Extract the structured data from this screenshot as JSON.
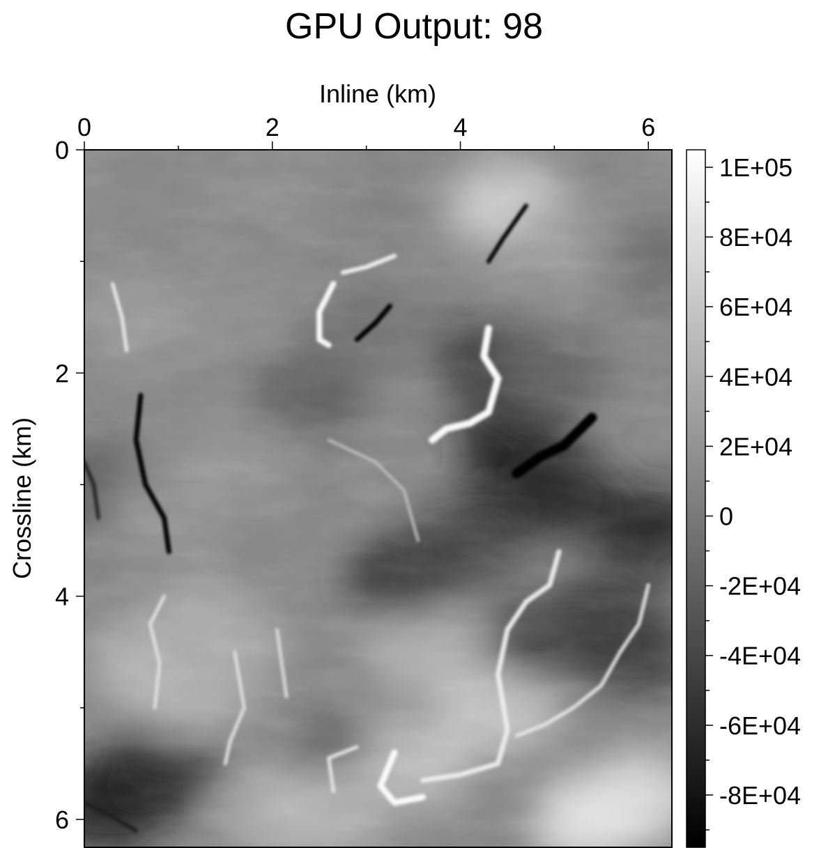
{
  "chart_data": {
    "type": "heatmap",
    "title": "GPU Output: 98",
    "xlabel": "Inline (km)",
    "ylabel": "Crossline (km)",
    "x_axis_position": "top",
    "y_axis_inverted": true,
    "xlim": [
      0,
      6.25
    ],
    "ylim": [
      0,
      6.25
    ],
    "x_ticks": [
      0,
      2,
      4,
      6
    ],
    "x_tick_labels": [
      "0",
      "2",
      "4",
      "6"
    ],
    "y_ticks": [
      0,
      2,
      4,
      6
    ],
    "y_tick_labels": [
      "0",
      "2",
      "4",
      "6"
    ],
    "colormap": "grayscale",
    "colorbar": {
      "range": [
        -95000,
        105000
      ],
      "ticks": [
        100000,
        80000,
        60000,
        40000,
        20000,
        0,
        -20000,
        -40000,
        -60000,
        -80000
      ],
      "tick_labels": [
        "1E+05",
        "8E+04",
        "6E+04",
        "4E+04",
        "2E+04",
        "0",
        "-2E+04",
        "-4E+04",
        "-6E+04",
        "-8E+04"
      ],
      "low_color": "#000000",
      "high_color": "#ffffff"
    },
    "features": [
      {
        "x": 0.5,
        "y": 5.7,
        "v": -80000
      },
      {
        "x": 0.25,
        "y": 5.9,
        "v": -70000
      },
      {
        "x": 0.9,
        "y": 5.5,
        "v": -60000
      },
      {
        "x": 0.7,
        "y": 4.6,
        "v": 50000
      },
      {
        "x": 1.1,
        "y": 4.9,
        "v": 45000
      },
      {
        "x": 1.5,
        "y": 4.4,
        "v": 40000
      },
      {
        "x": 1.2,
        "y": 4.2,
        "v": 35000
      },
      {
        "x": 2.0,
        "y": 5.9,
        "v": 40000
      },
      {
        "x": 2.8,
        "y": 5.6,
        "v": -85000
      },
      {
        "x": 2.6,
        "y": 5.9,
        "v": 55000
      },
      {
        "x": 3.5,
        "y": 5.5,
        "v": 60000
      },
      {
        "x": 4.4,
        "y": 5.0,
        "v": 65000
      },
      {
        "x": 5.4,
        "y": 6.0,
        "v": 90000
      },
      {
        "x": 5.9,
        "y": 5.8,
        "v": 80000
      },
      {
        "x": 3.6,
        "y": 4.5,
        "v": 45000
      },
      {
        "x": 4.5,
        "y": 0.5,
        "v": 70000
      },
      {
        "x": 5.1,
        "y": 0.9,
        "v": 25000
      },
      {
        "x": 4.7,
        "y": 3.0,
        "v": -85000
      },
      {
        "x": 4.6,
        "y": 2.6,
        "v": -70000
      },
      {
        "x": 5.1,
        "y": 3.1,
        "v": -60000
      },
      {
        "x": 4.3,
        "y": 1.9,
        "v": -50000
      },
      {
        "x": 5.0,
        "y": 2.0,
        "v": -20000
      },
      {
        "x": 6.0,
        "y": 3.4,
        "v": -70000
      },
      {
        "x": 5.5,
        "y": 4.2,
        "v": -55000
      },
      {
        "x": 5.9,
        "y": 4.5,
        "v": -50000
      },
      {
        "x": 4.9,
        "y": 4.4,
        "v": -45000
      },
      {
        "x": 3.4,
        "y": 3.8,
        "v": -55000
      },
      {
        "x": 4.1,
        "y": 3.5,
        "v": -45000
      },
      {
        "x": 2.4,
        "y": 2.2,
        "v": -25000
      },
      {
        "x": 1.7,
        "y": 2.8,
        "v": 20000
      },
      {
        "x": 1.5,
        "y": 1.5,
        "v": 15000
      },
      {
        "x": 0.5,
        "y": 1.5,
        "v": 25000
      },
      {
        "x": 0.2,
        "y": 3.0,
        "v": -25000
      },
      {
        "x": 0.9,
        "y": 3.2,
        "v": 20000
      },
      {
        "x": 2.0,
        "y": 0.4,
        "v": 15000
      },
      {
        "x": 3.2,
        "y": 0.6,
        "v": 5000
      },
      {
        "x": 3.0,
        "y": 1.6,
        "v": -10000
      },
      {
        "x": 2.7,
        "y": 3.0,
        "v": 10000
      },
      {
        "x": 6.1,
        "y": 1.0,
        "v": -10000
      }
    ],
    "ridges": [
      {
        "v": -95000,
        "w": 7,
        "pts": [
          [
            0.6,
            2.2
          ],
          [
            0.55,
            2.6
          ],
          [
            0.65,
            3.0
          ],
          [
            0.85,
            3.3
          ],
          [
            0.9,
            3.6
          ]
        ]
      },
      {
        "v": -70000,
        "w": 5,
        "pts": [
          [
            0.0,
            2.8
          ],
          [
            0.1,
            3.0
          ],
          [
            0.15,
            3.3
          ]
        ]
      },
      {
        "v": 90000,
        "w": 5,
        "pts": [
          [
            0.3,
            1.2
          ],
          [
            0.4,
            1.5
          ],
          [
            0.45,
            1.8
          ]
        ]
      },
      {
        "v": 100000,
        "w": 8,
        "pts": [
          [
            2.65,
            1.2
          ],
          [
            2.5,
            1.45
          ],
          [
            2.5,
            1.7
          ],
          [
            2.6,
            1.75
          ]
        ]
      },
      {
        "v": 95000,
        "w": 6,
        "pts": [
          [
            2.75,
            1.1
          ],
          [
            3.0,
            1.05
          ],
          [
            3.3,
            0.95
          ]
        ]
      },
      {
        "v": -95000,
        "w": 7,
        "pts": [
          [
            2.9,
            1.7
          ],
          [
            3.1,
            1.55
          ],
          [
            3.25,
            1.4
          ]
        ]
      },
      {
        "v": 100000,
        "w": 10,
        "pts": [
          [
            4.3,
            1.6
          ],
          [
            4.25,
            1.85
          ],
          [
            4.4,
            2.05
          ],
          [
            4.3,
            2.35
          ],
          [
            4.1,
            2.45
          ],
          [
            3.85,
            2.5
          ],
          [
            3.7,
            2.6
          ]
        ]
      },
      {
        "v": -90000,
        "w": 6,
        "pts": [
          [
            4.3,
            1.0
          ],
          [
            4.45,
            0.8
          ],
          [
            4.7,
            0.5
          ]
        ]
      },
      {
        "v": -95000,
        "w": 14,
        "pts": [
          [
            4.6,
            2.9
          ],
          [
            4.85,
            2.75
          ],
          [
            5.1,
            2.65
          ],
          [
            5.4,
            2.4
          ]
        ]
      },
      {
        "v": 90000,
        "w": 7,
        "pts": [
          [
            5.05,
            3.6
          ],
          [
            4.95,
            3.9
          ],
          [
            4.7,
            4.05
          ],
          [
            4.5,
            4.3
          ],
          [
            4.4,
            4.7
          ],
          [
            4.5,
            5.2
          ],
          [
            4.4,
            5.5
          ],
          [
            4.0,
            5.6
          ],
          [
            3.6,
            5.65
          ]
        ]
      },
      {
        "v": 85000,
        "w": 5,
        "pts": [
          [
            6.0,
            3.9
          ],
          [
            5.9,
            4.25
          ],
          [
            5.7,
            4.5
          ],
          [
            5.5,
            4.8
          ],
          [
            5.2,
            5.0
          ],
          [
            4.9,
            5.15
          ],
          [
            4.6,
            5.25
          ]
        ]
      },
      {
        "v": 100000,
        "w": 9,
        "pts": [
          [
            3.3,
            5.4
          ],
          [
            3.15,
            5.7
          ],
          [
            3.3,
            5.85
          ],
          [
            3.6,
            5.8
          ]
        ]
      },
      {
        "v": 85000,
        "w": 5,
        "pts": [
          [
            2.9,
            5.35
          ],
          [
            2.6,
            5.45
          ],
          [
            2.65,
            5.75
          ]
        ]
      },
      {
        "v": 80000,
        "w": 5,
        "pts": [
          [
            1.6,
            4.5
          ],
          [
            1.7,
            5.0
          ],
          [
            1.55,
            5.3
          ],
          [
            1.5,
            5.5
          ]
        ]
      },
      {
        "v": 75000,
        "w": 5,
        "pts": [
          [
            2.05,
            4.3
          ],
          [
            2.1,
            4.6
          ],
          [
            2.15,
            4.9
          ]
        ]
      },
      {
        "v": 80000,
        "w": 5,
        "pts": [
          [
            0.85,
            4.0
          ],
          [
            0.7,
            4.25
          ],
          [
            0.8,
            4.6
          ],
          [
            0.75,
            5.0
          ]
        ]
      },
      {
        "v": -70000,
        "w": 6,
        "pts": [
          [
            0.0,
            5.85
          ],
          [
            0.25,
            5.95
          ],
          [
            0.55,
            6.1
          ]
        ]
      },
      {
        "v": 55000,
        "w": 4,
        "pts": [
          [
            2.6,
            2.6
          ],
          [
            3.1,
            2.8
          ],
          [
            3.4,
            3.05
          ],
          [
            3.55,
            3.5
          ]
        ]
      }
    ]
  }
}
